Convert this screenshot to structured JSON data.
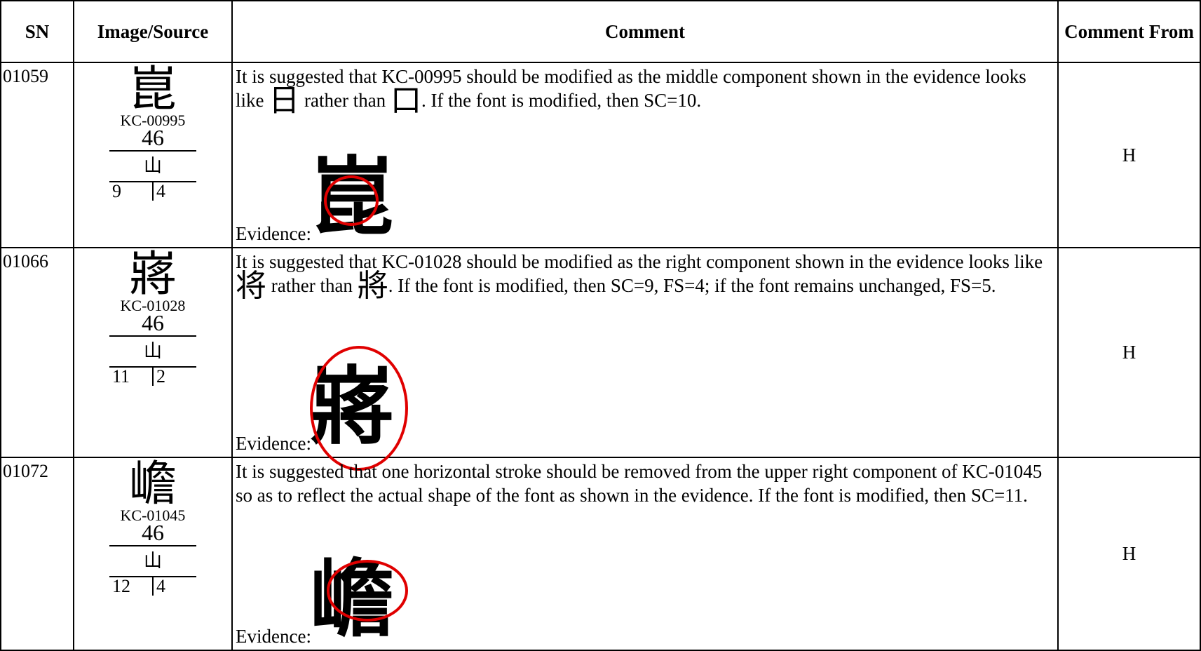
{
  "table": {
    "header": [
      "SN",
      "Image/Source",
      "Comment",
      "Comment From"
    ],
    "rows": [
      {
        "sn": "01059",
        "glyph": "崑",
        "source": "KC-00995",
        "radical_no": "46",
        "radical": "山",
        "strokes": [
          "9",
          "4"
        ],
        "comment": [
          "It is suggested that KC-00995 should be modified as the middle component shown in the evidence looks like ",
          "日",
          " rather than ",
          "口",
          ".  If the font is modified, then SC=10."
        ],
        "evidence_label": "Evidence:",
        "evidence_glyph": "崑",
        "from": "H"
      },
      {
        "sn": "01066",
        "glyph": "嶈",
        "source": "KC-01028",
        "radical_no": "46",
        "radical": "山",
        "strokes": [
          "11",
          "2"
        ],
        "comment": [
          "It is suggested that KC-01028 should be modified as the right component shown in the evidence looks like ",
          "将",
          " rather than ",
          "將",
          ".  If the font is modified, then SC=9, FS=4; if the font remains unchanged, FS=5."
        ],
        "evidence_label": "Evidence:",
        "evidence_glyph": "嶈",
        "from": "H"
      },
      {
        "sn": "01072",
        "glyph": "嶦",
        "source": "KC-01045",
        "radical_no": "46",
        "radical": "山",
        "strokes": [
          "12",
          "4"
        ],
        "comment": [
          "It is suggested that one horizontal stroke should be removed from the upper right component of KC-01045 so as to reflect the actual shape of the font as shown in the evidence.  If the font is modified, then SC=11."
        ],
        "evidence_label": "Evidence:",
        "evidence_glyph": "嶦",
        "from": "H"
      }
    ]
  }
}
